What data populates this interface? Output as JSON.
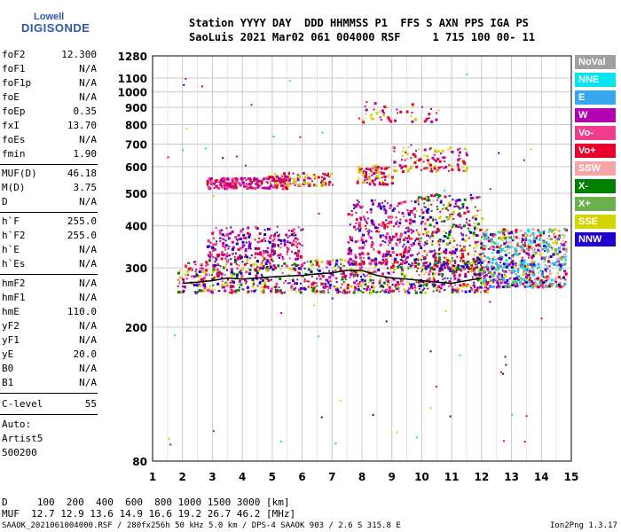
{
  "logo": {
    "top": "Lowell",
    "main": "DIGISONDE"
  },
  "header": {
    "line1": "Station YYYY DAY  DDD HHMMSS P1  FFS S AXN PPS IGA PS",
    "line2": "SaoLuis 2021 Mar02 061 004000 RSF     1 715 100 00- 11"
  },
  "params_group1": [
    {
      "label": "foF2",
      "value": "12.300"
    },
    {
      "label": "foF1",
      "value": "N/A"
    },
    {
      "label": "foF1p",
      "value": "N/A"
    },
    {
      "label": "foE",
      "value": "N/A"
    },
    {
      "label": "foEp",
      "value": "0.35"
    },
    {
      "label": "fxI",
      "value": "13.70"
    },
    {
      "label": "foEs",
      "value": "N/A"
    },
    {
      "label": "fmin",
      "value": "1.90"
    }
  ],
  "params_group2": [
    {
      "label": "MUF(D)",
      "value": "46.18"
    },
    {
      "label": "M(D)",
      "value": "3.75"
    },
    {
      "label": "D",
      "value": "N/A"
    }
  ],
  "params_group3": [
    {
      "label": "h`F",
      "value": "255.0"
    },
    {
      "label": "h`F2",
      "value": "255.0"
    },
    {
      "label": "h`E",
      "value": "N/A"
    },
    {
      "label": "h`Es",
      "value": "N/A"
    }
  ],
  "params_group4": [
    {
      "label": "hmF2",
      "value": "N/A"
    },
    {
      "label": "hmF1",
      "value": "N/A"
    },
    {
      "label": "hmE",
      "value": "110.0"
    },
    {
      "label": "yF2",
      "value": "N/A"
    },
    {
      "label": "yF1",
      "value": "N/A"
    },
    {
      "label": "yE",
      "value": "20.0"
    },
    {
      "label": "B0",
      "value": "N/A"
    },
    {
      "label": "B1",
      "value": "N/A"
    }
  ],
  "clevel": {
    "label": "C-level",
    "value": "55"
  },
  "auto": {
    "line1": "Auto:",
    "line2": "Artist5",
    "line3": "500200"
  },
  "legend": [
    {
      "label": "NoVal",
      "color": "#a0a0a0"
    },
    {
      "label": "NNE",
      "color": "#00e5ee"
    },
    {
      "label": "E",
      "color": "#3aa6f0"
    },
    {
      "label": "W",
      "color": "#b000b0"
    },
    {
      "label": "Vo-",
      "color": "#f03c8c"
    },
    {
      "label": "Vo+",
      "color": "#e8002a"
    },
    {
      "label": "SSW",
      "color": "#f4a6a6"
    },
    {
      "label": "X-",
      "color": "#008000"
    },
    {
      "label": "X+",
      "color": "#6ab04c"
    },
    {
      "label": "SSE",
      "color": "#d4d400"
    },
    {
      "label": "NNW",
      "color": "#2000d0"
    }
  ],
  "bottom": {
    "d_line": "D     100  200  400  600  800 1000 1500 3000 [km]",
    "muf_line": "MUF  12.7 12.9 13.6 14.9 16.6 19.2 26.7 46.2 [MHz]"
  },
  "footer": {
    "left": "SAAOK_2021061004000.RSF / 280fx256h 50 kHz 5.0 km / DPS-4 SAAOK 903 / 2.6 S 315.8 E",
    "right": "Ion2Png 1.3.17"
  },
  "chart_data": {
    "type": "scatter",
    "title": "",
    "xlabel": "",
    "ylabel": "",
    "xlim": [
      1,
      15
    ],
    "ylim": [
      80,
      1280
    ],
    "x_ticks": [
      1,
      2,
      3,
      4,
      5,
      6,
      7,
      8,
      9,
      10,
      11,
      12,
      13,
      14,
      15
    ],
    "y_ticks": [
      80,
      200,
      300,
      400,
      500,
      600,
      700,
      800,
      900,
      1000,
      1100,
      1280
    ],
    "y_scale": "log",
    "grid": true,
    "legend_position": "right",
    "trace": {
      "name": "",
      "x": [
        2.0,
        2.5,
        3.0,
        3.5,
        4.0,
        4.5,
        5.0,
        5.5,
        6.0,
        6.5,
        7.0,
        7.5,
        8.0,
        8.5,
        9.0,
        9.5,
        10.0,
        10.5,
        11.0,
        11.5,
        12.0
      ],
      "y": [
        270,
        272,
        275,
        280,
        278,
        280,
        282,
        284,
        285,
        288,
        290,
        295,
        295,
        285,
        280,
        278,
        275,
        272,
        270,
        275,
        280
      ],
      "color": "#000000"
    },
    "clusters": [
      {
        "x0": 1.8,
        "x1": 12.2,
        "y0": 255,
        "y1": 320,
        "colors": [
          "#e8002a",
          "#b000b0",
          "#f03c8c",
          "#2000d0",
          "#008000",
          "#d4d400"
        ],
        "count": 900
      },
      {
        "x0": 2.8,
        "x1": 6.0,
        "y0": 320,
        "y1": 400,
        "colors": [
          "#b000b0",
          "#f03c8c",
          "#e8002a",
          "#2000d0"
        ],
        "count": 260
      },
      {
        "x0": 7.5,
        "x1": 9.8,
        "y0": 310,
        "y1": 480,
        "colors": [
          "#b000b0",
          "#e8002a",
          "#f03c8c",
          "#2000d0"
        ],
        "count": 300
      },
      {
        "x0": 9.8,
        "x1": 12.0,
        "y0": 300,
        "y1": 500,
        "colors": [
          "#e8002a",
          "#d4d400",
          "#b000b0",
          "#2000d0",
          "#008000"
        ],
        "count": 380
      },
      {
        "x0": 12.0,
        "x1": 14.8,
        "y0": 265,
        "y1": 395,
        "colors": [
          "#00e5ee",
          "#3aa6f0",
          "#f4a6a6",
          "#6ab04c",
          "#d4d400",
          "#e8002a",
          "#2000d0",
          "#b000b0"
        ],
        "count": 700
      },
      {
        "x0": 2.8,
        "x1": 5.5,
        "y0": 520,
        "y1": 560,
        "colors": [
          "#b000b0",
          "#e8002a",
          "#f03c8c"
        ],
        "count": 200
      },
      {
        "x0": 4.8,
        "x1": 7.0,
        "y0": 530,
        "y1": 580,
        "colors": [
          "#d4d400",
          "#e8002a",
          "#b000b0"
        ],
        "count": 120
      },
      {
        "x0": 7.8,
        "x1": 9.0,
        "y0": 535,
        "y1": 610,
        "colors": [
          "#b000b0",
          "#e8002a",
          "#d4d400"
        ],
        "count": 100
      },
      {
        "x0": 9.0,
        "x1": 11.5,
        "y0": 585,
        "y1": 690,
        "colors": [
          "#d4d400",
          "#e8002a",
          "#b000b0"
        ],
        "count": 120
      },
      {
        "x0": 7.8,
        "x1": 10.5,
        "y0": 820,
        "y1": 940,
        "colors": [
          "#d4d400",
          "#b000b0",
          "#e8002a"
        ],
        "count": 45
      },
      {
        "x0": 1.3,
        "x1": 14.5,
        "y0": 90,
        "y1": 1200,
        "colors": [
          "#b000b0",
          "#2000d0",
          "#00e5ee",
          "#d4d400",
          "#e8002a"
        ],
        "count": 70
      }
    ]
  }
}
